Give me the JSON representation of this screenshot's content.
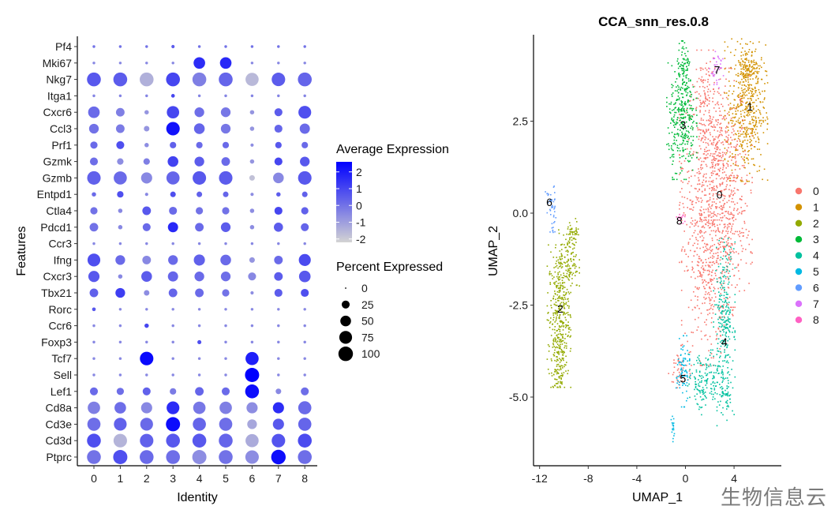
{
  "watermark": "生物信息云",
  "chart_data": [
    {
      "type": "scatter",
      "subtype": "dotplot",
      "xlabel": "Identity",
      "ylabel": "Features",
      "categories": [
        "0",
        "1",
        "2",
        "3",
        "4",
        "5",
        "6",
        "7",
        "8"
      ],
      "features": [
        "Pf4",
        "Mki67",
        "Nkg7",
        "Itga1",
        "Cxcr6",
        "Ccl3",
        "Prf1",
        "Gzmk",
        "Gzmb",
        "Entpd1",
        "Ctla4",
        "Pdcd1",
        "Ccr3",
        "Ifng",
        "Cxcr3",
        "Tbx21",
        "Rorc",
        "Ccr6",
        "Foxp3",
        "Tcf7",
        "Sell",
        "Lef1",
        "Cd8a",
        "Cd3e",
        "Cd3d",
        "Ptprc"
      ],
      "pct": [
        [
          1,
          1,
          1,
          2,
          1,
          1,
          1,
          1,
          1
        ],
        [
          1,
          1,
          1,
          1,
          60,
          60,
          1,
          1,
          1
        ],
        [
          90,
          90,
          90,
          90,
          90,
          90,
          80,
          85,
          90
        ],
        [
          1,
          1,
          1,
          3,
          1,
          1,
          1,
          1,
          1
        ],
        [
          60,
          30,
          5,
          70,
          40,
          40,
          5,
          25,
          75
        ],
        [
          40,
          30,
          10,
          85,
          50,
          40,
          5,
          25,
          45
        ],
        [
          20,
          25,
          5,
          15,
          15,
          15,
          2,
          15,
          15
        ],
        [
          25,
          15,
          15,
          50,
          40,
          30,
          5,
          25,
          40
        ],
        [
          85,
          80,
          55,
          80,
          85,
          85,
          10,
          50,
          85
        ],
        [
          5,
          15,
          2,
          10,
          10,
          10,
          2,
          5,
          10
        ],
        [
          20,
          5,
          30,
          25,
          20,
          20,
          5,
          25,
          20
        ],
        [
          30,
          5,
          25,
          45,
          30,
          40,
          5,
          35,
          25
        ],
        [
          1,
          1,
          1,
          1,
          1,
          1,
          1,
          1,
          1
        ],
        [
          75,
          40,
          30,
          40,
          55,
          50,
          10,
          30,
          65
        ],
        [
          55,
          5,
          50,
          45,
          40,
          40,
          25,
          30,
          60
        ],
        [
          30,
          40,
          10,
          30,
          30,
          20,
          2,
          25,
          25
        ],
        [
          3,
          1,
          1,
          1,
          1,
          1,
          1,
          1,
          1
        ],
        [
          1,
          1,
          5,
          1,
          1,
          1,
          1,
          1,
          1
        ],
        [
          1,
          1,
          1,
          1,
          4,
          1,
          1,
          1,
          1
        ],
        [
          1,
          1,
          85,
          1,
          1,
          1,
          80,
          1,
          1
        ],
        [
          1,
          1,
          1,
          1,
          1,
          1,
          95,
          1,
          1
        ],
        [
          25,
          20,
          25,
          15,
          30,
          25,
          90,
          10,
          25
        ],
        [
          70,
          60,
          55,
          75,
          70,
          70,
          55,
          55,
          80
        ],
        [
          80,
          75,
          75,
          95,
          80,
          80,
          40,
          55,
          80
        ],
        [
          90,
          85,
          85,
          90,
          90,
          90,
          80,
          85,
          90
        ],
        [
          90,
          95,
          90,
          90,
          95,
          90,
          85,
          100,
          90
        ]
      ],
      "avg": [
        [
          0,
          0,
          0,
          0.5,
          0,
          0,
          0,
          0,
          0
        ],
        [
          -0.5,
          -0.5,
          -0.5,
          -0.5,
          1.6,
          1.7,
          -0.5,
          -0.5,
          -0.5
        ],
        [
          0.6,
          0.5,
          -1.4,
          1.0,
          -0.3,
          0.3,
          -1.6,
          0.5,
          0.3
        ],
        [
          -0.4,
          -0.4,
          -0.4,
          1.0,
          -0.4,
          -0.4,
          -0.4,
          -0.4,
          -0.4
        ],
        [
          0.2,
          -0.3,
          -0.8,
          1.0,
          0.1,
          -0.1,
          -0.8,
          0.5,
          0.8
        ],
        [
          0.0,
          -0.2,
          -0.8,
          2.2,
          0.3,
          -0.1,
          -0.8,
          0.3,
          0.2
        ],
        [
          0.2,
          0.8,
          -0.6,
          0.4,
          0.2,
          0.2,
          -0.6,
          0.6,
          0.2
        ],
        [
          0.1,
          -0.6,
          -0.3,
          1.1,
          0.5,
          0.2,
          -0.8,
          1.0,
          0.6
        ],
        [
          0.4,
          0.2,
          -0.5,
          0.3,
          0.6,
          0.5,
          -1.8,
          -0.5,
          0.6
        ],
        [
          0.2,
          0.8,
          -0.5,
          0.8,
          0.4,
          0.3,
          -0.6,
          0.5,
          0.4
        ],
        [
          0.0,
          -0.5,
          0.6,
          0.2,
          0.0,
          0.0,
          -0.6,
          1.0,
          0.4
        ],
        [
          0.0,
          -0.5,
          0.2,
          1.7,
          0.2,
          0.5,
          -0.6,
          0.5,
          0.3
        ],
        [
          -0.5,
          -0.5,
          -0.5,
          -0.5,
          -0.5,
          -0.5,
          -0.5,
          -0.5,
          -0.5
        ],
        [
          0.8,
          0.2,
          -0.5,
          0.2,
          0.4,
          0.2,
          -0.8,
          0.2,
          0.9
        ],
        [
          0.6,
          -0.5,
          0.5,
          0.3,
          0.2,
          0.1,
          -0.5,
          0.5,
          0.6
        ],
        [
          0.4,
          1.2,
          -0.6,
          0.3,
          0.2,
          0.0,
          -0.6,
          0.5,
          0.8
        ],
        [
          0.6,
          -0.5,
          -0.5,
          -0.5,
          -0.5,
          -0.5,
          -0.5,
          -0.5,
          -0.5
        ],
        [
          -0.5,
          -0.5,
          1.0,
          -0.5,
          -0.5,
          -0.5,
          -0.5,
          -0.5,
          -0.5
        ],
        [
          -0.5,
          -0.5,
          -0.5,
          -0.5,
          0.8,
          -0.5,
          -0.5,
          -0.5,
          -0.5
        ],
        [
          -0.5,
          -0.5,
          2.4,
          -0.5,
          -0.5,
          -0.5,
          1.9,
          -0.5,
          -0.5
        ],
        [
          -0.5,
          -0.5,
          -0.5,
          -0.5,
          -0.5,
          -0.5,
          2.6,
          -0.5,
          -0.5
        ],
        [
          0.2,
          0.1,
          0.4,
          -0.2,
          0.3,
          0.2,
          2.3,
          -0.5,
          0.1
        ],
        [
          -0.3,
          0.1,
          -0.5,
          1.6,
          -0.1,
          -0.3,
          -0.6,
          1.6,
          0.2
        ],
        [
          0.1,
          0.4,
          0.2,
          2.3,
          0.3,
          0.1,
          -1.2,
          0.6,
          0.3
        ],
        [
          0.8,
          -1.5,
          0.4,
          0.6,
          0.6,
          0.3,
          -1.3,
          0.7,
          0.9
        ],
        [
          0.0,
          0.8,
          0.2,
          0.1,
          -0.6,
          0.0,
          -0.6,
          2.3,
          0.1
        ]
      ],
      "legend": {
        "color_title": "Average Expression",
        "color_ticks": [
          "2",
          "1",
          "0",
          "-1",
          "-2"
        ],
        "color_range": [
          -2.2,
          2.6
        ],
        "color_low": "#d3d3d3",
        "color_high": "#0000ff",
        "size_title": "Percent Expressed",
        "size_ticks": [
          "0",
          "25",
          "50",
          "75",
          "100"
        ],
        "placement": "right"
      }
    },
    {
      "type": "scatter",
      "subtype": "umap",
      "title": "CCA_snn_res.0.8",
      "xlabel": "UMAP_1",
      "ylabel": "UMAP_2",
      "xlim": [
        -12.5,
        7.5
      ],
      "ylim": [
        -6.7,
        4.9
      ],
      "xticks": [
        "-12",
        "-8",
        "-4",
        "0",
        "4"
      ],
      "yticks": [
        "2.5",
        "0.0",
        "-2.5",
        "-5.0"
      ],
      "legend_placement": "right",
      "clusters": [
        {
          "name": "0",
          "color": "#f8766d",
          "label": [
            2.8,
            0.5
          ],
          "blobs": [
            [
              2.5,
              1.3,
              1.7,
              1.5,
              700
            ],
            [
              1.8,
              -1.5,
              1.2,
              1.5,
              400
            ],
            [
              3.8,
              -0.8,
              0.9,
              1.0,
              150
            ],
            [
              1.5,
              3.2,
              0.6,
              0.7,
              70
            ],
            [
              -0.5,
              -4.3,
              0.5,
              0.4,
              45
            ]
          ]
        },
        {
          "name": "1",
          "color": "#d39200",
          "label": [
            5.3,
            2.9
          ],
          "blobs": [
            [
              5.0,
              2.8,
              1.0,
              1.1,
              450
            ],
            [
              5.2,
              3.9,
              0.6,
              0.4,
              120
            ]
          ]
        },
        {
          "name": "2",
          "color": "#93aa00",
          "label": [
            -10.3,
            -2.6
          ],
          "blobs": [
            [
              -10.4,
              -2.8,
              0.55,
              1.1,
              360
            ],
            [
              -9.6,
              -1.3,
              0.5,
              0.5,
              120
            ],
            [
              -9.2,
              -0.5,
              0.3,
              0.2,
              40
            ],
            [
              -10.4,
              -4.3,
              0.4,
              0.3,
              60
            ]
          ]
        },
        {
          "name": "3",
          "color": "#00ba38",
          "label": [
            -0.2,
            2.4
          ],
          "blobs": [
            [
              -0.3,
              2.5,
              0.7,
              0.9,
              300
            ],
            [
              -0.1,
              3.8,
              0.4,
              0.5,
              90
            ]
          ]
        },
        {
          "name": "4",
          "color": "#00c19f",
          "label": [
            3.2,
            -3.5
          ],
          "blobs": [
            [
              3.2,
              -2.8,
              0.5,
              1.2,
              250
            ],
            [
              1.5,
              -4.6,
              0.9,
              0.5,
              150
            ],
            [
              3.3,
              -4.9,
              0.4,
              0.5,
              60
            ]
          ]
        },
        {
          "name": "5",
          "color": "#00b9e3",
          "label": [
            -0.2,
            -4.5
          ],
          "blobs": [
            [
              -0.2,
              -4.3,
              0.35,
              0.55,
              80
            ],
            [
              -1.0,
              -5.9,
              0.1,
              0.3,
              18
            ]
          ]
        },
        {
          "name": "6",
          "color": "#619cff",
          "label": [
            -11.2,
            0.3
          ],
          "blobs": [
            [
              -11.1,
              0.2,
              0.25,
              0.35,
              35
            ],
            [
              -10.9,
              -0.3,
              0.15,
              0.15,
              10
            ]
          ]
        },
        {
          "name": "7",
          "color": "#db72fb",
          "label": [
            2.6,
            3.9
          ],
          "blobs": [
            [
              2.6,
              3.9,
              0.35,
              0.28,
              40
            ]
          ]
        },
        {
          "name": "8",
          "color": "#ff61c3",
          "label": [
            -0.5,
            -0.2
          ],
          "blobs": [
            [
              -0.4,
              -0.15,
              0.2,
              0.14,
              16
            ]
          ]
        }
      ]
    }
  ]
}
